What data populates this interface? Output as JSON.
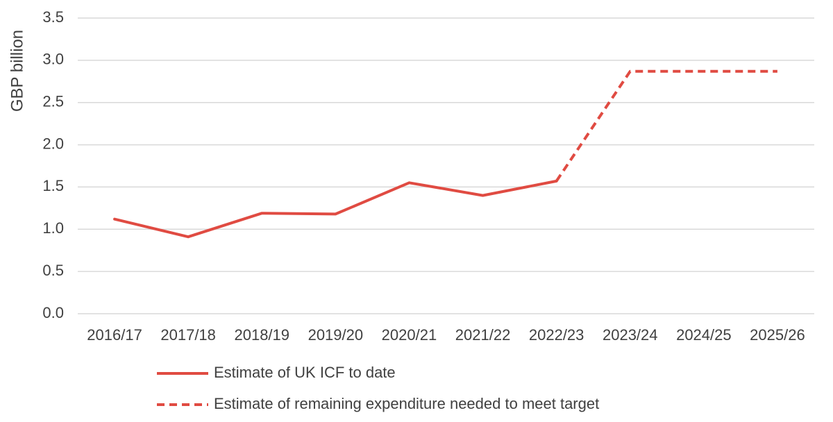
{
  "chart_data": {
    "type": "line",
    "title": "",
    "xlabel": "",
    "ylabel": "GBP billion",
    "ylim": [
      0,
      3.5
    ],
    "yticks": [
      "0.0",
      "0.5",
      "1.0",
      "1.5",
      "2.0",
      "2.5",
      "3.0",
      "3.5"
    ],
    "grid": true,
    "legend_position": "bottom",
    "categories": [
      "2016/17",
      "2017/18",
      "2018/19",
      "2019/20",
      "2020/21",
      "2021/22",
      "2022/23",
      "2023/24",
      "2024/25",
      "2025/26"
    ],
    "series": [
      {
        "name": "Estimate of UK ICF to date",
        "style": "solid",
        "color": "#e04b42",
        "values": [
          1.12,
          0.91,
          1.19,
          1.18,
          1.55,
          1.4,
          1.57,
          null,
          null,
          null
        ]
      },
      {
        "name": "Estimate of remaining expenditure needed to meet target",
        "style": "dashed",
        "color": "#e04b42",
        "values": [
          null,
          null,
          null,
          null,
          null,
          null,
          1.57,
          2.87,
          2.87,
          2.87
        ]
      }
    ]
  }
}
